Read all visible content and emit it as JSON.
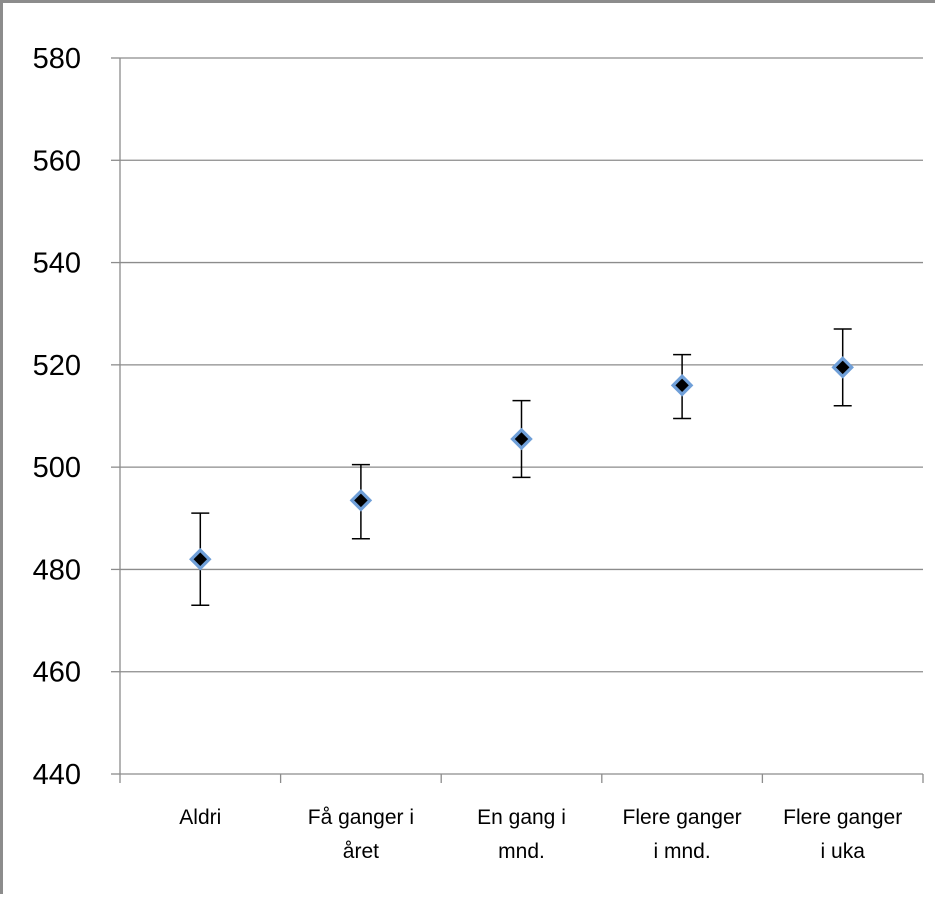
{
  "chart_data": {
    "type": "scatter",
    "title": "",
    "xlabel": "",
    "ylabel": "",
    "categories": [
      [
        "Aldri"
      ],
      [
        "Få ganger i",
        "året"
      ],
      [
        "En gang i",
        "mnd."
      ],
      [
        "Flere ganger",
        "i mnd."
      ],
      [
        "Flere ganger",
        "i uka"
      ]
    ],
    "series": [
      {
        "values": [
          482,
          493.5,
          505.5,
          516,
          519.5
        ],
        "error_lower": [
          473,
          486,
          498,
          509.5,
          512
        ],
        "error_upper": [
          491,
          500.5,
          513,
          522,
          527
        ]
      }
    ],
    "ylim": [
      440,
      580
    ],
    "yticks": [
      440,
      460,
      480,
      500,
      520,
      540,
      560,
      580
    ],
    "grid": true,
    "legend": "none",
    "colors": {
      "marker_fill": "#000000",
      "marker_outline": "#6f9fd8",
      "gridline": "#8c8c8c",
      "axis": "#8c8c8c",
      "error_bar": "#000000"
    }
  }
}
